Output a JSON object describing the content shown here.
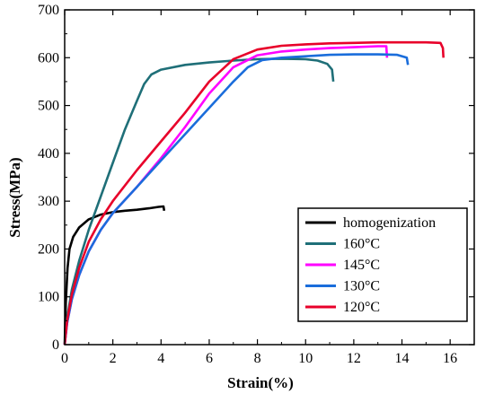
{
  "chart_data": {
    "type": "line",
    "title": "",
    "xlabel": "Strain(%)",
    "ylabel": "Stress(MPa)",
    "xlim": [
      0,
      17
    ],
    "ylim": [
      0,
      700
    ],
    "xticks": [
      0,
      2,
      4,
      6,
      8,
      10,
      12,
      14,
      16
    ],
    "yticks": [
      0,
      100,
      200,
      300,
      400,
      500,
      600,
      700
    ],
    "grid": false,
    "legend_position": "lower-right",
    "series": [
      {
        "name": "homogenization",
        "color": "#000000",
        "points": [
          [
            0,
            0
          ],
          [
            0.05,
            90
          ],
          [
            0.12,
            160
          ],
          [
            0.2,
            200
          ],
          [
            0.35,
            225
          ],
          [
            0.6,
            245
          ],
          [
            1.0,
            262
          ],
          [
            1.5,
            272
          ],
          [
            2.0,
            277
          ],
          [
            2.5,
            280
          ],
          [
            3.0,
            282
          ],
          [
            3.5,
            285
          ],
          [
            3.9,
            288
          ],
          [
            4.1,
            289
          ],
          [
            4.13,
            280
          ]
        ]
      },
      {
        "name": "160°C",
        "color": "#1f6f78",
        "points": [
          [
            0,
            0
          ],
          [
            0.1,
            55
          ],
          [
            0.3,
            115
          ],
          [
            0.6,
            175
          ],
          [
            1.0,
            240
          ],
          [
            1.5,
            310
          ],
          [
            2.0,
            380
          ],
          [
            2.5,
            450
          ],
          [
            3.0,
            510
          ],
          [
            3.3,
            545
          ],
          [
            3.6,
            565
          ],
          [
            4.0,
            575
          ],
          [
            5.0,
            585
          ],
          [
            6.0,
            590
          ],
          [
            7.0,
            594
          ],
          [
            8.0,
            597
          ],
          [
            9.0,
            598
          ],
          [
            10.0,
            597
          ],
          [
            10.5,
            594
          ],
          [
            10.9,
            587
          ],
          [
            11.1,
            575
          ],
          [
            11.15,
            550
          ]
        ]
      },
      {
        "name": "145°C",
        "color": "#ff00ff",
        "points": [
          [
            0,
            0
          ],
          [
            0.1,
            45
          ],
          [
            0.3,
            95
          ],
          [
            0.6,
            145
          ],
          [
            1.0,
            195
          ],
          [
            1.5,
            240
          ],
          [
            2.0,
            275
          ],
          [
            3.0,
            330
          ],
          [
            4.0,
            390
          ],
          [
            5.0,
            455
          ],
          [
            6.0,
            525
          ],
          [
            7.0,
            580
          ],
          [
            8.0,
            605
          ],
          [
            9.0,
            613
          ],
          [
            10.0,
            617
          ],
          [
            11.0,
            620
          ],
          [
            12.0,
            622
          ],
          [
            13.0,
            624
          ],
          [
            13.35,
            624
          ],
          [
            13.38,
            600
          ]
        ]
      },
      {
        "name": "130°C",
        "color": "#1a6ddb",
        "points": [
          [
            0,
            0
          ],
          [
            0.1,
            45
          ],
          [
            0.3,
            95
          ],
          [
            0.6,
            145
          ],
          [
            1.0,
            195
          ],
          [
            1.5,
            240
          ],
          [
            2.0,
            275
          ],
          [
            3.0,
            330
          ],
          [
            4.0,
            385
          ],
          [
            5.0,
            440
          ],
          [
            6.0,
            495
          ],
          [
            7.0,
            550
          ],
          [
            7.6,
            580
          ],
          [
            8.2,
            595
          ],
          [
            9.0,
            600
          ],
          [
            10.0,
            603
          ],
          [
            11.0,
            606
          ],
          [
            12.0,
            607
          ],
          [
            13.0,
            607
          ],
          [
            13.8,
            606
          ],
          [
            14.2,
            600
          ],
          [
            14.25,
            585
          ]
        ]
      },
      {
        "name": "120°C",
        "color": "#e8002a",
        "points": [
          [
            0,
            0
          ],
          [
            0.1,
            50
          ],
          [
            0.3,
            105
          ],
          [
            0.6,
            160
          ],
          [
            1.0,
            215
          ],
          [
            1.5,
            262
          ],
          [
            2.0,
            300
          ],
          [
            3.0,
            365
          ],
          [
            4.0,
            425
          ],
          [
            5.0,
            485
          ],
          [
            6.0,
            550
          ],
          [
            7.0,
            597
          ],
          [
            8.0,
            617
          ],
          [
            9.0,
            625
          ],
          [
            10.0,
            628
          ],
          [
            11.0,
            630
          ],
          [
            12.0,
            631
          ],
          [
            13.0,
            632
          ],
          [
            14.0,
            632
          ],
          [
            15.0,
            632
          ],
          [
            15.6,
            631
          ],
          [
            15.7,
            620
          ],
          [
            15.72,
            600
          ]
        ]
      }
    ]
  }
}
